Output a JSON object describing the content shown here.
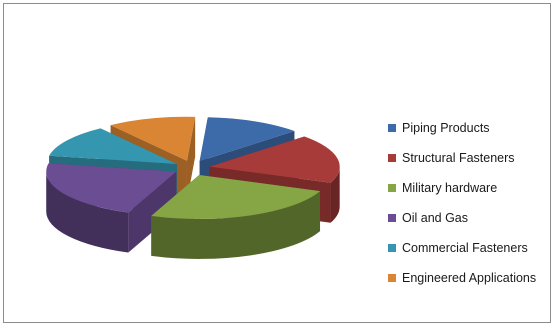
{
  "chart_data": {
    "type": "pie",
    "title": "",
    "categories": [
      "Piping Products",
      "Structural Fasteners",
      "Military hardware",
      "Oil and Gas",
      "Commercial Fasteners",
      "Engineered Applications"
    ],
    "values": [
      12,
      18,
      25,
      22,
      12,
      11
    ],
    "exploded": true,
    "three_d": true,
    "legend_position": "right",
    "colors": {
      "Piping Products": "#3d6aa8",
      "Structural Fasteners": "#a73b39",
      "Military hardware": "#86a544",
      "Oil and Gas": "#6b4d93",
      "Commercial Fasteners": "#3596b0",
      "Engineered Applications": "#d98533"
    }
  },
  "legend": {
    "items": [
      {
        "label": "Piping Products",
        "color": "#3d6aa8"
      },
      {
        "label": "Structural Fasteners",
        "color": "#a73b39"
      },
      {
        "label": "Military hardware",
        "color": "#86a544"
      },
      {
        "label": "Oil and Gas",
        "color": "#6b4d93"
      },
      {
        "label": "Commercial Fasteners",
        "color": "#3596b0"
      },
      {
        "label": "Engineered Applications",
        "color": "#d98533"
      }
    ]
  }
}
